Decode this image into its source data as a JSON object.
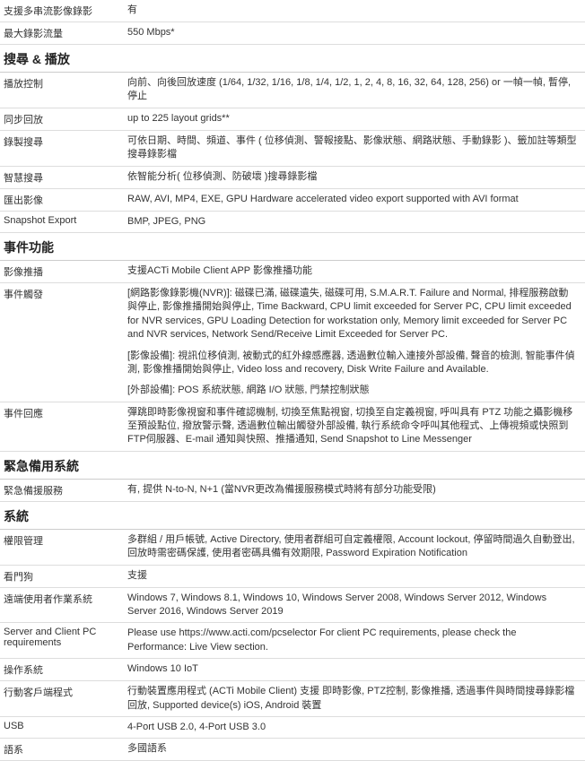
{
  "rows": [
    {
      "type": "row",
      "label": "支援多串流影像錄影",
      "value": "有"
    },
    {
      "type": "row",
      "label": "最大錄影流量",
      "value": "550 Mbps*"
    },
    {
      "type": "header",
      "label": "搜尋 & 播放"
    },
    {
      "type": "row",
      "label": "播放控制",
      "value": "向前、向後回放速度 (1/64, 1/32, 1/16, 1/8, 1/4, 1/2, 1, 2, 4, 8, 16, 32, 64, 128, 256) or 一幀一幀, 暫停, 停止"
    },
    {
      "type": "row",
      "label": "同步回放",
      "value": "up to 225 layout grids**"
    },
    {
      "type": "row",
      "label": "錄製搜尋",
      "value": "可依日期、時間、頻道、事件 ( 位移偵測、警報接點、影像狀態、網路狀態、手動錄影 )、籤加註等類型搜尋錄影檔"
    },
    {
      "type": "row",
      "label": "智慧搜尋",
      "value": "依智能分析( 位移偵測、防破壞 )搜尋錄影檔"
    },
    {
      "type": "row",
      "label": "匯出影像",
      "value": "RAW, AVI, MP4, EXE, GPU Hardware accelerated video export supported with AVI format"
    },
    {
      "type": "row",
      "label": "Snapshot Export",
      "value": "BMP, JPEG, PNG"
    },
    {
      "type": "header",
      "label": "事件功能"
    },
    {
      "type": "row",
      "label": "影像推播",
      "value": "支援ACTi Mobile Client APP 影像推播功能"
    },
    {
      "type": "multirow",
      "label": "事件觸發",
      "paragraphs": [
        "[網路影像錄影機(NVR)]: 磁碟已滿, 磁碟遺失, 磁碟可用, S.M.A.R.T. Failure and Normal, 排程服務啟動與停止, 影像推播開始與停止, Time Backward, CPU limit exceeded for Server PC, CPU limit exceeded for NVR services, GPU Loading Detection for workstation only, Memory limit exceeded for Server PC and NVR services, Network Send/Receive Limit Exceeded for Server PC.",
        "[影像設備]: 視訊位移偵測, 被動式的紅外線感應器, 透過數位輸入連接外部設備, 聲音的檢測, 智能事件偵測, 影像推播開始與停止, Video loss and recovery, Disk Write Failure and Available.",
        "[外部設備]: POS 系統狀態, 網路 I/O 狀態, 門禁控制狀態"
      ]
    },
    {
      "type": "row",
      "label": "事件回應",
      "value": "彈跳即時影像視窗和事件確認機制, 切換至焦點視窗, 切換至自定義視窗, 呼叫具有 PTZ 功能之攝影機移至預設點位, 撥放警示聲, 透過數位輸出觸發外部設備, 執行系統命令呼叫其他程式、上傳視頻或快照到FTP伺服器、E-mail 通知與快照、推播通知, Send Snapshot to Line Messenger"
    },
    {
      "type": "header",
      "label": "緊急備用系統"
    },
    {
      "type": "row",
      "label": "緊急備援服務",
      "value": "有, 提供 N-to-N, N+1 (當NVR更改為備援服務模式時將有部分功能受限)"
    },
    {
      "type": "header",
      "label": "系統"
    },
    {
      "type": "row",
      "label": "權限管理",
      "value": "多群組 / 用戶帳號, Active Directory, 使用者群組可自定義權限, Account lockout, 停留時間過久自動登出, 回放時需密碼保護, 使用者密碼具備有效期限, Password Expiration Notification"
    },
    {
      "type": "row",
      "label": "看門狗",
      "value": "支援"
    },
    {
      "type": "row",
      "label": "遠端使用者作業系統",
      "value": "Windows 7, Windows 8.1, Windows 10, Windows Server 2008, Windows Server 2012, Windows Server 2016, Windows Server 2019"
    },
    {
      "type": "row",
      "label": "Server and Client PC requirements",
      "value": "Please use https://www.acti.com/pcselector For client PC requirements, please check the Performance: Live View section."
    },
    {
      "type": "row",
      "label": "操作系統",
      "value": "Windows 10 IoT"
    },
    {
      "type": "row",
      "label": "行動客戶端程式",
      "value": "行動裝置應用程式 (ACTi Mobile Client) 支援 即時影像, PTZ控制, 影像推播, 透過事件與時間搜尋錄影檔回放, Supported device(s) iOS, Android 裝置"
    },
    {
      "type": "row",
      "label": "USB",
      "value": "4-Port USB 2.0, 4-Port USB 3.0"
    },
    {
      "type": "row",
      "label": "語系",
      "value": "多國語系"
    }
  ]
}
